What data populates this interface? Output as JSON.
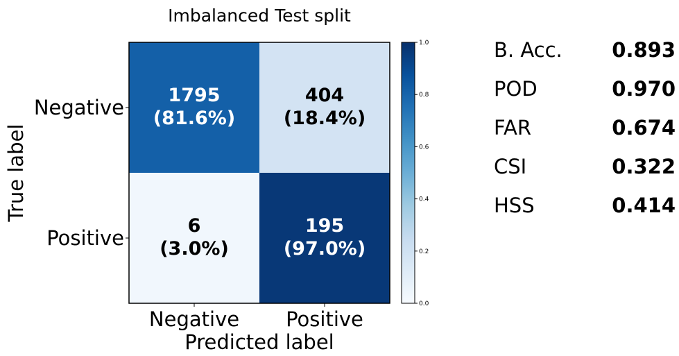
{
  "chart_data": {
    "type": "heatmap",
    "title": "Imbalanced Test split",
    "xlabel": "Predicted label",
    "ylabel": "True label",
    "x_categories": [
      "Negative",
      "Positive"
    ],
    "y_categories": [
      "Negative",
      "Positive"
    ],
    "cells": [
      {
        "true": "Negative",
        "predicted": "Negative",
        "count": "1795",
        "percent": "(81.6%)",
        "value": 0.816
      },
      {
        "true": "Negative",
        "predicted": "Positive",
        "count": "404",
        "percent": "(18.4%)",
        "value": 0.184
      },
      {
        "true": "Positive",
        "predicted": "Negative",
        "count": "6",
        "percent": "(3.0%)",
        "value": 0.03
      },
      {
        "true": "Positive",
        "predicted": "Positive",
        "count": "195",
        "percent": "(97.0%)",
        "value": 0.97
      }
    ],
    "colorbar": {
      "min": 0.0,
      "max": 1.0,
      "ticks": [
        0.0,
        0.2,
        0.4,
        0.6,
        0.8,
        1.0
      ],
      "tick_labels": [
        "0.0",
        "0.2",
        "0.4",
        "0.6",
        "0.8",
        "1.0"
      ],
      "colormap": "Blues"
    }
  },
  "metrics": [
    {
      "name": "B. Acc.",
      "value": "0.893"
    },
    {
      "name": "POD",
      "value": "0.970"
    },
    {
      "name": "FAR",
      "value": "0.674"
    },
    {
      "name": "CSI",
      "value": "0.322"
    },
    {
      "name": "HSS",
      "value": "0.414"
    }
  ]
}
